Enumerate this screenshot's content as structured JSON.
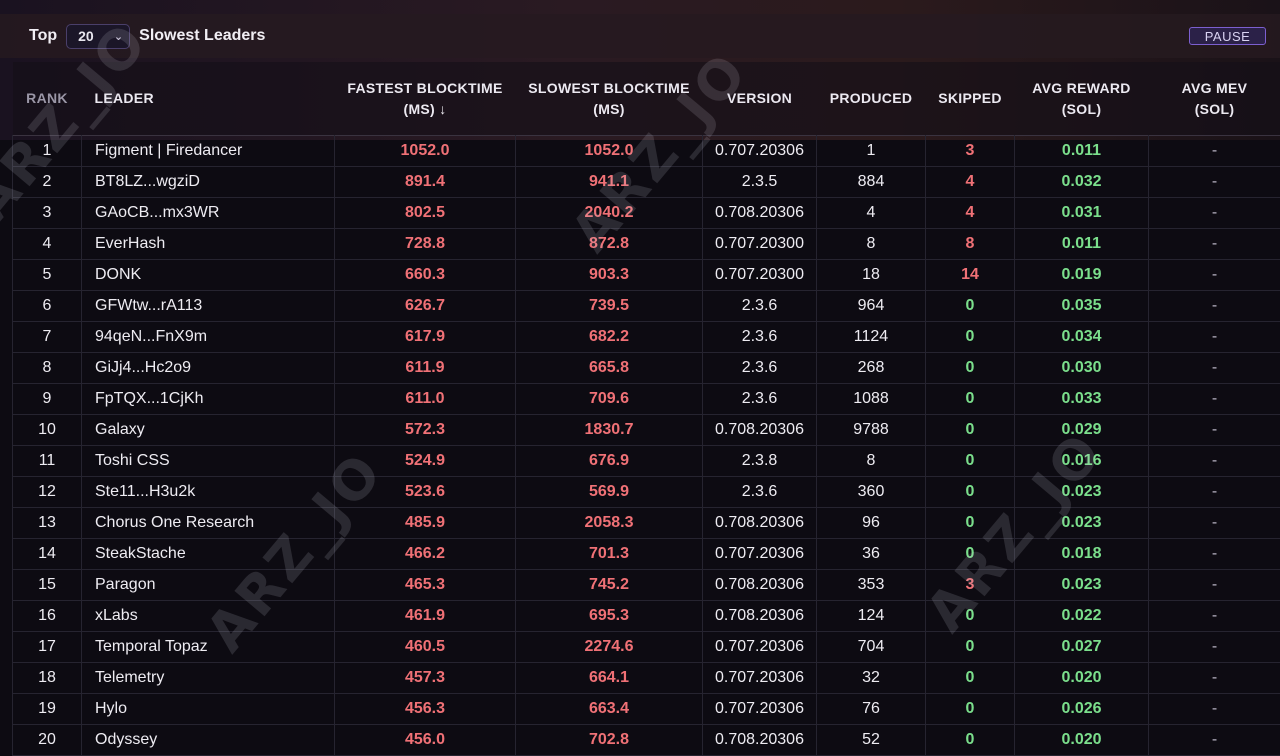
{
  "header": {
    "top_label": "Top",
    "count_value": "20",
    "title": "Slowest Leaders",
    "pause_label": "PAUSE"
  },
  "watermark_text": "ARZ_JO",
  "columns": [
    {
      "key": "rank",
      "line1": "RANK",
      "line2": ""
    },
    {
      "key": "leader",
      "line1": "LEADER",
      "line2": ""
    },
    {
      "key": "fastest",
      "line1": "FASTEST BLOCKTIME",
      "line2": "(MS) ↓"
    },
    {
      "key": "slowest",
      "line1": "SLOWEST BLOCKTIME",
      "line2": "(MS)"
    },
    {
      "key": "version",
      "line1": "VERSION",
      "line2": ""
    },
    {
      "key": "produced",
      "line1": "PRODUCED",
      "line2": ""
    },
    {
      "key": "skipped",
      "line1": "SKIPPED",
      "line2": ""
    },
    {
      "key": "avg_reward",
      "line1": "AVG REWARD",
      "line2": "(SOL)"
    },
    {
      "key": "avg_mev",
      "line1": "AVG MEV",
      "line2": "(SOL)"
    }
  ],
  "rows": [
    {
      "rank": "1",
      "leader": "Figment | Firedancer",
      "fastest": "1052.0",
      "slowest": "1052.0",
      "version": "0.707.20306",
      "produced": "1",
      "skipped": "3",
      "avg_reward": "0.011",
      "avg_mev": "-"
    },
    {
      "rank": "2",
      "leader": "BT8LZ...wgziD",
      "fastest": "891.4",
      "slowest": "941.1",
      "version": "2.3.5",
      "produced": "884",
      "skipped": "4",
      "avg_reward": "0.032",
      "avg_mev": "-"
    },
    {
      "rank": "3",
      "leader": "GAoCB...mx3WR",
      "fastest": "802.5",
      "slowest": "2040.2",
      "version": "0.708.20306",
      "produced": "4",
      "skipped": "4",
      "avg_reward": "0.031",
      "avg_mev": "-"
    },
    {
      "rank": "4",
      "leader": "EverHash",
      "fastest": "728.8",
      "slowest": "872.8",
      "version": "0.707.20300",
      "produced": "8",
      "skipped": "8",
      "avg_reward": "0.011",
      "avg_mev": "-"
    },
    {
      "rank": "5",
      "leader": "DONK",
      "fastest": "660.3",
      "slowest": "903.3",
      "version": "0.707.20300",
      "produced": "18",
      "skipped": "14",
      "avg_reward": "0.019",
      "avg_mev": "-"
    },
    {
      "rank": "6",
      "leader": "GFWtw...rA113",
      "fastest": "626.7",
      "slowest": "739.5",
      "version": "2.3.6",
      "produced": "964",
      "skipped": "0",
      "avg_reward": "0.035",
      "avg_mev": "-"
    },
    {
      "rank": "7",
      "leader": "94qeN...FnX9m",
      "fastest": "617.9",
      "slowest": "682.2",
      "version": "2.3.6",
      "produced": "1124",
      "skipped": "0",
      "avg_reward": "0.034",
      "avg_mev": "-"
    },
    {
      "rank": "8",
      "leader": "GiJj4...Hc2o9",
      "fastest": "611.9",
      "slowest": "665.8",
      "version": "2.3.6",
      "produced": "268",
      "skipped": "0",
      "avg_reward": "0.030",
      "avg_mev": "-"
    },
    {
      "rank": "9",
      "leader": "FpTQX...1CjKh",
      "fastest": "611.0",
      "slowest": "709.6",
      "version": "2.3.6",
      "produced": "1088",
      "skipped": "0",
      "avg_reward": "0.033",
      "avg_mev": "-"
    },
    {
      "rank": "10",
      "leader": "Galaxy",
      "fastest": "572.3",
      "slowest": "1830.7",
      "version": "0.708.20306",
      "produced": "9788",
      "skipped": "0",
      "avg_reward": "0.029",
      "avg_mev": "-"
    },
    {
      "rank": "11",
      "leader": "Toshi CSS",
      "fastest": "524.9",
      "slowest": "676.9",
      "version": "2.3.8",
      "produced": "8",
      "skipped": "0",
      "avg_reward": "0.016",
      "avg_mev": "-"
    },
    {
      "rank": "12",
      "leader": "Ste11...H3u2k",
      "fastest": "523.6",
      "slowest": "569.9",
      "version": "2.3.6",
      "produced": "360",
      "skipped": "0",
      "avg_reward": "0.023",
      "avg_mev": "-"
    },
    {
      "rank": "13",
      "leader": "Chorus One Research",
      "fastest": "485.9",
      "slowest": "2058.3",
      "version": "0.708.20306",
      "produced": "96",
      "skipped": "0",
      "avg_reward": "0.023",
      "avg_mev": "-"
    },
    {
      "rank": "14",
      "leader": "SteakStache",
      "fastest": "466.2",
      "slowest": "701.3",
      "version": "0.707.20306",
      "produced": "36",
      "skipped": "0",
      "avg_reward": "0.018",
      "avg_mev": "-"
    },
    {
      "rank": "15",
      "leader": "Paragon",
      "fastest": "465.3",
      "slowest": "745.2",
      "version": "0.708.20306",
      "produced": "353",
      "skipped": "3",
      "avg_reward": "0.023",
      "avg_mev": "-"
    },
    {
      "rank": "16",
      "leader": "xLabs",
      "fastest": "461.9",
      "slowest": "695.3",
      "version": "0.708.20306",
      "produced": "124",
      "skipped": "0",
      "avg_reward": "0.022",
      "avg_mev": "-"
    },
    {
      "rank": "17",
      "leader": "Temporal Topaz",
      "fastest": "460.5",
      "slowest": "2274.6",
      "version": "0.707.20306",
      "produced": "704",
      "skipped": "0",
      "avg_reward": "0.027",
      "avg_mev": "-"
    },
    {
      "rank": "18",
      "leader": "Telemetry",
      "fastest": "457.3",
      "slowest": "664.1",
      "version": "0.707.20306",
      "produced": "32",
      "skipped": "0",
      "avg_reward": "0.020",
      "avg_mev": "-"
    },
    {
      "rank": "19",
      "leader": "Hylo",
      "fastest": "456.3",
      "slowest": "663.4",
      "version": "0.707.20306",
      "produced": "76",
      "skipped": "0",
      "avg_reward": "0.026",
      "avg_mev": "-"
    },
    {
      "rank": "20",
      "leader": "Odyssey",
      "fastest": "456.0",
      "slowest": "702.8",
      "version": "0.708.20306",
      "produced": "52",
      "skipped": "0",
      "avg_reward": "0.020",
      "avg_mev": "-"
    }
  ],
  "colors": {
    "background": "#0d0b12",
    "blocktime_red": "#f07176",
    "skipped_red": "#f07176",
    "skipped_zero_green": "#7bdf8c",
    "reward_green": "#7bdf8c",
    "accent_purple": "#7c5fd0"
  }
}
